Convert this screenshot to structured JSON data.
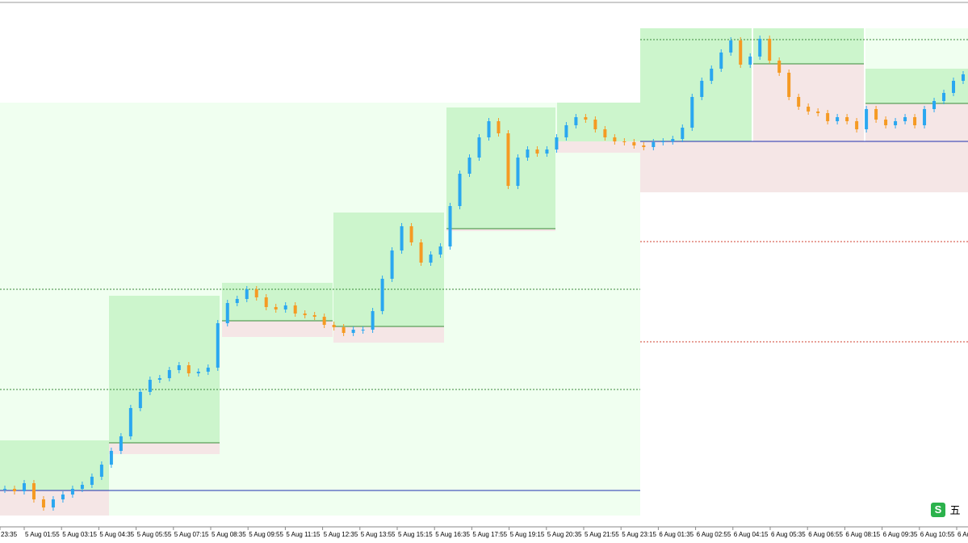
{
  "chart_data": {
    "type": "candlestick",
    "x_labels": [
      "23:35",
      "5 Aug 01:55",
      "5 Aug 03:15",
      "5 Aug 04:35",
      "5 Aug 05:55",
      "5 Aug 07:15",
      "5 Aug 08:35",
      "5 Aug 09:55",
      "5 Aug 11:15",
      "5 Aug 12:35",
      "5 Aug 13:55",
      "5 Aug 15:15",
      "5 Aug 16:35",
      "5 Aug 17:55",
      "5 Aug 19:15",
      "5 Aug 20:35",
      "5 Aug 21:55",
      "5 Aug 23:15",
      "6 Aug 01:35",
      "6 Aug 02:55",
      "6 Aug 04:15",
      "6 Aug 05:35",
      "6 Aug 06:55",
      "6 Aug 08:15",
      "6 Aug 09:35",
      "6 Aug 10:55",
      "6 Au"
    ],
    "series": [
      {
        "up_color": "#2aa7f0",
        "down_color": "#f59a23",
        "values": [
          45,
          42,
          52,
          32,
          22,
          32,
          38,
          45,
          50,
          60,
          75,
          92,
          110,
          145,
          165,
          180,
          182,
          192,
          198,
          188,
          190,
          195,
          250,
          275,
          280,
          292,
          282,
          270,
          267,
          272,
          262,
          260,
          258,
          248,
          245,
          238,
          242,
          242,
          265,
          305,
          340,
          370,
          350,
          325,
          335,
          345,
          395,
          435,
          455,
          480,
          500,
          485,
          420,
          455,
          465,
          460,
          465,
          480,
          495,
          505,
          502,
          490,
          480,
          475,
          474,
          470,
          468,
          474,
          475,
          478,
          492,
          530,
          550,
          565,
          585,
          600,
          570,
          580,
          602,
          575,
          560,
          530,
          518,
          512,
          510,
          500,
          505,
          500,
          490,
          515,
          502,
          495,
          500,
          505,
          495,
          515,
          525,
          535,
          550,
          558
        ]
      }
    ],
    "ylim": [
      0,
      650
    ]
  },
  "ime_badge": {
    "icon": "S",
    "text": "五"
  }
}
